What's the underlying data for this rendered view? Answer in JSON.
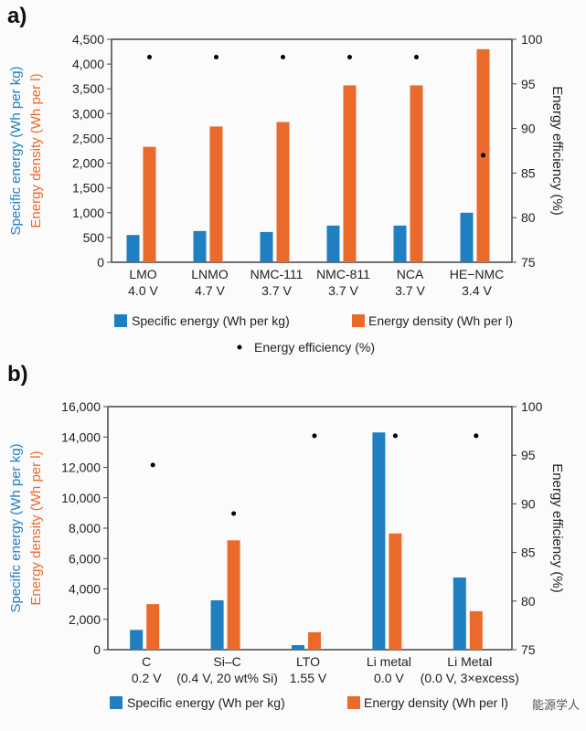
{
  "colors": {
    "specific": "#1f7fc1",
    "density": "#ea6a2c",
    "efficiency": "#000000"
  },
  "chart_data": [
    {
      "panel": "a)",
      "type": "bar",
      "categories": [
        "LMO\n4.0 V",
        "LNMO\n4.7 V",
        "NMC-111\n3.7 V",
        "NMC-811\n3.7 V",
        "NCA\n3.7 V",
        "HE−NMC\n3.4 V"
      ],
      "series": [
        {
          "name": "Specific energy (Wh per kg)",
          "axis": "left",
          "values": [
            550,
            630,
            610,
            740,
            740,
            1000
          ]
        },
        {
          "name": "Energy density (Wh per l)",
          "axis": "left",
          "values": [
            2330,
            2740,
            2830,
            3570,
            3570,
            4300
          ]
        },
        {
          "name": "Energy efficiency (%)",
          "axis": "right",
          "type": "scatter",
          "values": [
            98,
            98,
            98,
            98,
            98,
            87
          ]
        }
      ],
      "ylabel_left": [
        "Specific energy (Wh per kg)",
        "Energy density (Wh per l)"
      ],
      "ylabel_right": "Energy efficiency (%)",
      "ylim": [
        0,
        4500
      ],
      "yticks": [
        "0",
        "500",
        "1,000",
        "1,500",
        "2,000",
        "2,500",
        "3,000",
        "3,500",
        "4,000",
        "4,500"
      ],
      "y2lim": [
        75,
        100
      ],
      "y2ticks": [
        "75",
        "80",
        "85",
        "90",
        "95",
        "100"
      ],
      "grid": false,
      "legend": "bottom"
    },
    {
      "panel": "b)",
      "type": "bar",
      "categories": [
        "C\n0.2 V",
        "Si–C\n(0.4 V, 20 wt% Si)",
        "LTO\n1.55 V",
        "Li metal\n0.0 V",
        "Li Metal\n(0.0 V, 3×excess)"
      ],
      "series": [
        {
          "name": "Specific energy (Wh per kg)",
          "axis": "left",
          "values": [
            1300,
            3250,
            300,
            14300,
            4750
          ]
        },
        {
          "name": "Energy density (Wh per l)",
          "axis": "left",
          "values": [
            3000,
            7200,
            1150,
            7650,
            2530
          ]
        },
        {
          "name": "Energy efficiency (%)",
          "axis": "right",
          "type": "scatter",
          "values": [
            94,
            89,
            97,
            97,
            97
          ]
        }
      ],
      "ylabel_left": [
        "Specific energy (Wh per kg)",
        "Energy density (Wh per l)"
      ],
      "ylabel_right": "Energy efficiency (%)",
      "ylim": [
        0,
        16000
      ],
      "yticks": [
        "0",
        "2,000",
        "4,000",
        "6,000",
        "8,000",
        "10,000",
        "12,000",
        "14,000",
        "16,000"
      ],
      "y2lim": [
        75,
        100
      ],
      "y2ticks": [
        "75",
        "80",
        "85",
        "90",
        "95",
        "100"
      ],
      "grid": false,
      "legend": "bottom"
    }
  ],
  "watermark": "能源学人"
}
